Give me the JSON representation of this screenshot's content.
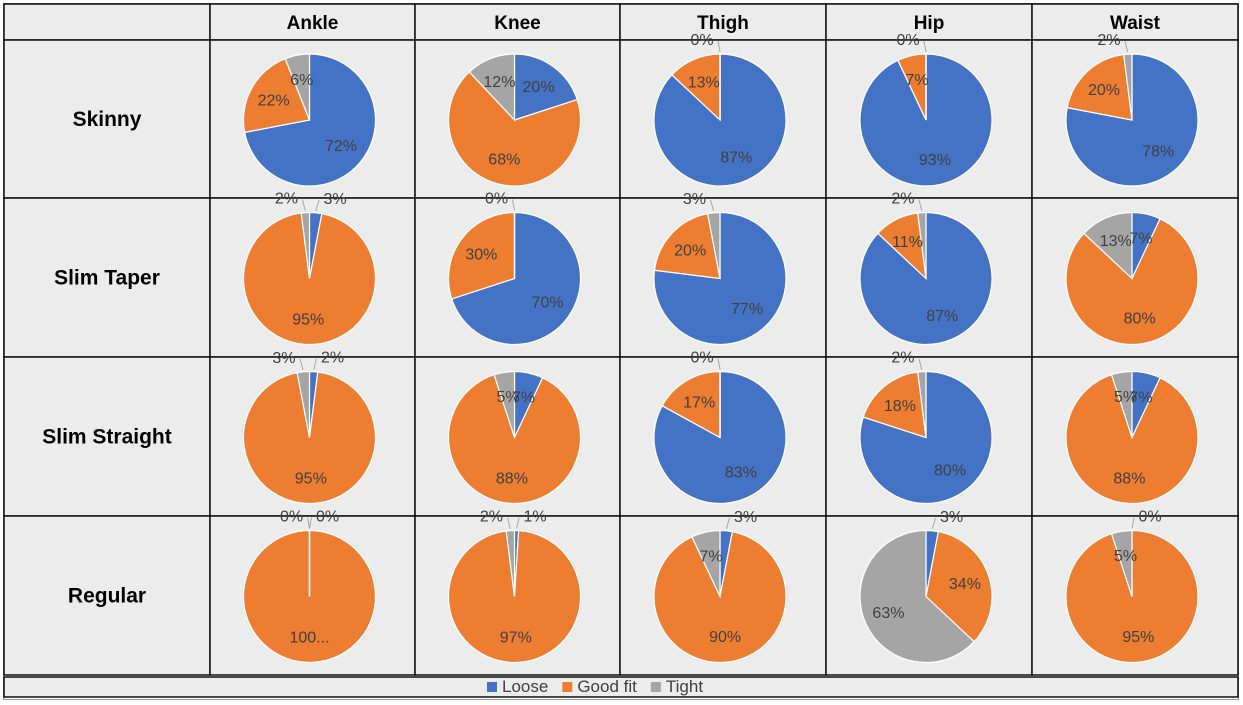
{
  "colors": {
    "Loose": "#4472c4",
    "Good fit": "#ed7d31",
    "Tight": "#a5a5a5"
  },
  "chart_data": {
    "type": "pie",
    "columns": [
      "Ankle",
      "Knee",
      "Thigh",
      "Hip",
      "Waist"
    ],
    "rows": [
      "Skinny",
      "Slim Taper",
      "Slim Straight",
      "Regular"
    ],
    "slice_order": [
      "Loose",
      "Good fit",
      "Tight"
    ],
    "legend": {
      "position": "bottom",
      "entries": [
        "Loose",
        "Good fit",
        "Tight"
      ]
    },
    "pies": [
      [
        {
          "values": [
            72,
            22,
            6
          ],
          "labels": [
            "72%",
            "22%",
            "6%"
          ]
        },
        {
          "values": [
            20,
            68,
            12
          ],
          "labels": [
            "20%",
            "68%",
            "12%"
          ]
        },
        {
          "values": [
            87,
            13,
            0
          ],
          "labels": [
            "87%",
            "13%",
            "0%"
          ]
        },
        {
          "values": [
            93,
            7,
            0
          ],
          "labels": [
            "93%",
            "7%",
            "0%"
          ]
        },
        {
          "values": [
            78,
            20,
            2
          ],
          "labels": [
            "78%",
            "20%",
            "2%"
          ]
        }
      ],
      [
        {
          "values": [
            3,
            95,
            2
          ],
          "labels": [
            "3%",
            "95%",
            "2%"
          ]
        },
        {
          "values": [
            70,
            30,
            0
          ],
          "labels": [
            "70%",
            "30%",
            "0%"
          ]
        },
        {
          "values": [
            77,
            20,
            3
          ],
          "labels": [
            "77%",
            "20%",
            "3%"
          ]
        },
        {
          "values": [
            87,
            11,
            2
          ],
          "labels": [
            "87%",
            "11%",
            "2%"
          ]
        },
        {
          "values": [
            7,
            80,
            13
          ],
          "labels": [
            "7%",
            "80%",
            "13%"
          ]
        }
      ],
      [
        {
          "values": [
            2,
            95,
            3
          ],
          "labels": [
            "2%",
            "95%",
            "3%"
          ]
        },
        {
          "values": [
            7,
            88,
            5
          ],
          "labels": [
            "7%",
            "88%",
            "5%"
          ]
        },
        {
          "values": [
            83,
            17,
            0
          ],
          "labels": [
            "83%",
            "17%",
            "0%"
          ]
        },
        {
          "values": [
            80,
            18,
            2
          ],
          "labels": [
            "80%",
            "18%",
            "2%"
          ]
        },
        {
          "values": [
            7,
            88,
            5
          ],
          "labels": [
            "7%",
            "88%",
            "5%"
          ]
        }
      ],
      [
        {
          "values": [
            0,
            100,
            0
          ],
          "labels": [
            "0%",
            "100...",
            "0%"
          ]
        },
        {
          "values": [
            1,
            97,
            2
          ],
          "labels": [
            "1%",
            "97%",
            "2%"
          ]
        },
        {
          "values": [
            3,
            90,
            7
          ],
          "labels": [
            "3%",
            "90%",
            "7%"
          ]
        },
        {
          "values": [
            3,
            34,
            63
          ],
          "labels": [
            "3%",
            "34%",
            "63%"
          ]
        },
        {
          "values": [
            0,
            95,
            5
          ],
          "labels": [
            "0%",
            "95%",
            "5%"
          ]
        }
      ]
    ]
  }
}
